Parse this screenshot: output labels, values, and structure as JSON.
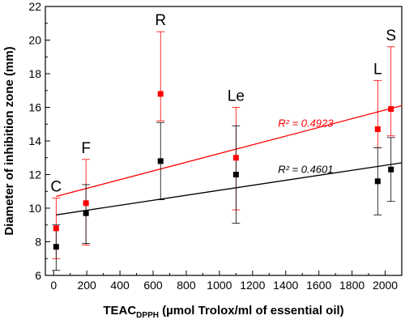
{
  "chart_data": {
    "type": "scatter",
    "xlabel_main": "TEAC",
    "xlabel_sub": "DPPH",
    "xlabel_rest": " (µmol Trolox/ml of essential oil)",
    "ylabel": "Diameter of inhibition zone (mm)",
    "xlim": [
      -50,
      2100
    ],
    "ylim": [
      6,
      22
    ],
    "x_ticks": [
      0,
      200,
      400,
      600,
      800,
      1000,
      1200,
      1400,
      1600,
      1800,
      2000
    ],
    "y_ticks": [
      6,
      8,
      10,
      12,
      14,
      16,
      18,
      20,
      22
    ],
    "grid": false,
    "point_labels": [
      {
        "text": "C",
        "x": 15
      },
      {
        "text": "F",
        "x": 195
      },
      {
        "text": "R",
        "x": 645
      },
      {
        "text": "Le",
        "x": 1100
      },
      {
        "text": "L",
        "x": 1955
      },
      {
        "text": "S",
        "x": 2035
      }
    ],
    "series": [
      {
        "color": "#ff0000",
        "x": [
          15,
          195,
          645,
          1100,
          1955,
          2035
        ],
        "y": [
          8.8,
          10.3,
          16.8,
          13.0,
          14.7,
          15.9
        ],
        "err_low": [
          7.0,
          7.8,
          15.2,
          9.9,
          13.6,
          14.3
        ],
        "err_high": [
          10.6,
          12.9,
          20.5,
          16.0,
          17.6,
          19.6
        ],
        "fit_start": [
          15,
          10.7
        ],
        "fit_end": [
          2100,
          16.1
        ],
        "r2_label": "R² = 0.4923"
      },
      {
        "color": "#000000",
        "x": [
          15,
          195,
          645,
          1100,
          1955,
          2035
        ],
        "y": [
          7.7,
          9.7,
          12.8,
          12.0,
          11.6,
          12.3
        ],
        "err_low": [
          6.3,
          7.9,
          10.5,
          9.1,
          9.6,
          10.4
        ],
        "err_high": [
          9.0,
          11.4,
          15.1,
          14.9,
          13.6,
          14.2
        ],
        "fit_start": [
          15,
          9.6
        ],
        "fit_end": [
          2100,
          12.7
        ],
        "r2_label": "R² = 0.4601"
      }
    ]
  }
}
